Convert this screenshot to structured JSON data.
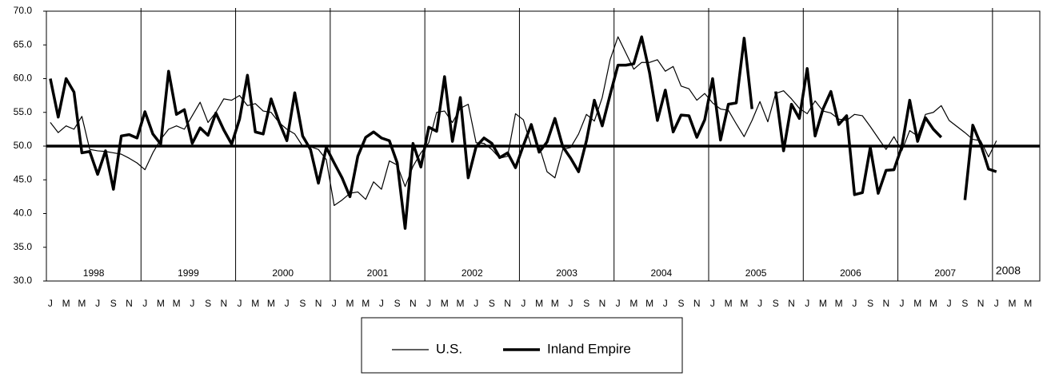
{
  "chart_data": {
    "type": "line",
    "categories": [
      "J",
      null,
      "M",
      null,
      "M",
      null,
      "J",
      null,
      "S",
      null,
      "N",
      null,
      "J",
      null,
      "M",
      null,
      "M",
      null,
      "J",
      null,
      "S",
      null,
      "N",
      null,
      "J",
      null,
      "M",
      null,
      "M",
      null,
      "J",
      null,
      "S",
      null,
      "N",
      null,
      "J",
      null,
      "M",
      null,
      "M",
      null,
      "J",
      null,
      "S",
      null,
      "N",
      null,
      "J",
      null,
      "M",
      null,
      "M",
      null,
      "J",
      null,
      "S",
      null,
      "N",
      null,
      "J",
      null,
      "M",
      null,
      "M",
      null,
      "J",
      null,
      "S",
      null,
      "N",
      null,
      "J",
      null,
      "M",
      null,
      "M",
      null,
      "J",
      null,
      "S",
      null,
      "N",
      null,
      "J",
      null,
      "M",
      null,
      "M",
      null,
      "J",
      null,
      "S",
      null,
      "N",
      null,
      "J",
      null,
      "M",
      null,
      "M",
      null,
      "J",
      null,
      "S",
      null,
      "N",
      null,
      "J",
      null,
      "M",
      null,
      "M",
      null,
      "J",
      null,
      "S",
      null,
      "N",
      null,
      "J",
      null,
      "M",
      null,
      "M",
      null
    ],
    "years": [
      "1998",
      "1999",
      "2000",
      "2001",
      "2002",
      "2003",
      "2004",
      "2005",
      "2006",
      "2007",
      "2008"
    ],
    "series": [
      {
        "name": "U.S.",
        "color": "#000000",
        "width": 1.2,
        "values": [
          53.5,
          52.0,
          53.0,
          52.5,
          54.4,
          49.5,
          49.3,
          49.2,
          49.0,
          48.8,
          48.2,
          47.5,
          46.5,
          49.0,
          51.0,
          52.5,
          53.0,
          52.5,
          54.5,
          56.5,
          53.5,
          55.0,
          57.0,
          56.8,
          57.5,
          56.0,
          56.3,
          55.2,
          55.0,
          53.5,
          52.5,
          51.8,
          50.0,
          49.9,
          49.5,
          48.0,
          41.2,
          42.0,
          43.0,
          43.2,
          42.1,
          44.7,
          43.6,
          47.8,
          47.2,
          44.0,
          47.0,
          49.0,
          50.5,
          55.0,
          55.2,
          53.5,
          55.6,
          56.2,
          50.5,
          50.4,
          49.5,
          48.2,
          48.5,
          54.8,
          53.9,
          50.0,
          50.0,
          46.2,
          45.3,
          49.5,
          49.8,
          51.8,
          54.7,
          53.7,
          57.2,
          62.8,
          66.2,
          63.8,
          61.4,
          62.4,
          62.4,
          62.8,
          61.1,
          61.8,
          58.9,
          58.5,
          56.8,
          57.8,
          56.4,
          55.5,
          55.3,
          53.3,
          51.4,
          53.8,
          56.6,
          53.6,
          57.8,
          58.2,
          57.0,
          55.6,
          54.8,
          56.7,
          55.2,
          54.9,
          54.0,
          53.8,
          54.7,
          54.5,
          52.9,
          51.2,
          49.5,
          51.4,
          49.3,
          52.3,
          51.5,
          54.7,
          55.0,
          56.0,
          53.8,
          52.9,
          52.0,
          51.0,
          50.8,
          48.4,
          50.8,
          null,
          null,
          null,
          null,
          null
        ]
      },
      {
        "name": "Inland Empire",
        "color": "#000000",
        "width": 3.5,
        "values": [
          60.0,
          54.3,
          60.0,
          58.0,
          49.0,
          49.2,
          45.8,
          49.3,
          43.6,
          51.5,
          51.7,
          51.2,
          55.1,
          51.8,
          50.3,
          61.1,
          54.7,
          55.4,
          50.4,
          52.7,
          51.6,
          54.9,
          52.4,
          50.3,
          54.0,
          60.5,
          52.1,
          51.8,
          57.0,
          53.6,
          50.8,
          57.9,
          51.5,
          49.5,
          44.5,
          49.8,
          47.5,
          45.3,
          42.5,
          48.5,
          51.3,
          52.1,
          51.2,
          50.8,
          47.5,
          37.8,
          50.4,
          46.9,
          52.8,
          52.2,
          60.3,
          50.7,
          57.2,
          45.3,
          49.9,
          51.2,
          50.4,
          48.3,
          49.0,
          46.8,
          50.1,
          53.2,
          49.1,
          50.6,
          54.1,
          49.9,
          48.2,
          46.2,
          50.8,
          56.8,
          53.0,
          57.6,
          62.0,
          62.0,
          62.2,
          66.2,
          60.9,
          53.8,
          58.3,
          52.1,
          54.6,
          54.5,
          51.3,
          53.9,
          60.0,
          50.9,
          56.2,
          56.4,
          66.0,
          55.5,
          null,
          null,
          58.1,
          49.3,
          56.2,
          54.1,
          61.5,
          51.5,
          55.5,
          58.1,
          53.2,
          54.5,
          42.8,
          43.1,
          49.8,
          43.0,
          46.4,
          46.5,
          49.9,
          56.8,
          50.7,
          54.2,
          52.5,
          51.3,
          null,
          null,
          42.0,
          53.1,
          50.3,
          46.6,
          46.2,
          null,
          null,
          null,
          null,
          null
        ]
      }
    ],
    "reference_line": 50,
    "ylim": [
      30,
      70
    ],
    "yticks": [
      {
        "value": 30,
        "label": "30.0"
      },
      {
        "value": 35,
        "label": "35.0"
      },
      {
        "value": 40,
        "label": "40.0"
      },
      {
        "value": 45,
        "label": "45.0"
      },
      {
        "value": 50,
        "label": "50.0"
      },
      {
        "value": 55,
        "label": "55.0"
      },
      {
        "value": 60,
        "label": "60.0"
      },
      {
        "value": 65,
        "label": "65.0"
      },
      {
        "value": 70,
        "label": "70.0"
      }
    ],
    "legend": "bottom"
  }
}
